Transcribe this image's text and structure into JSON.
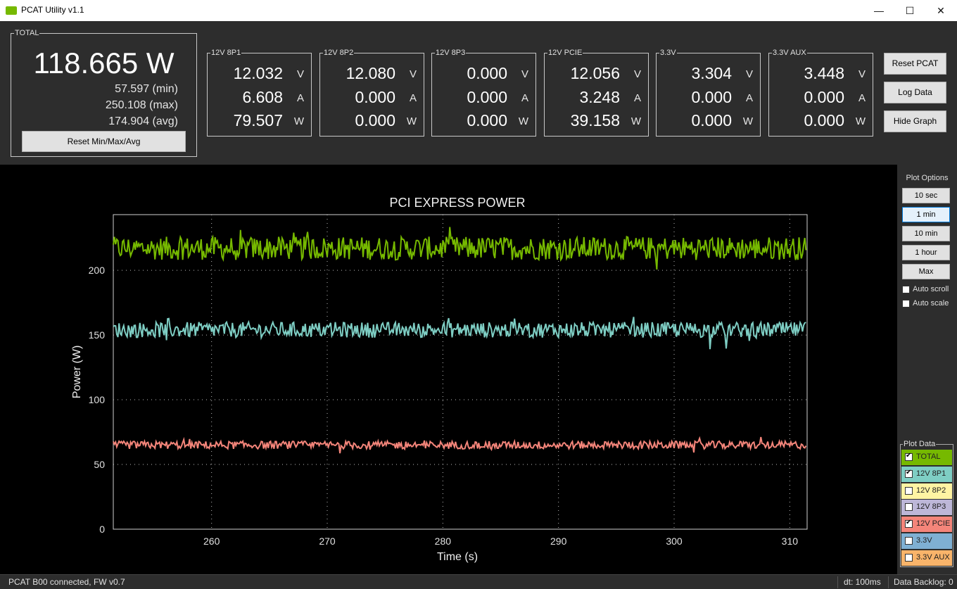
{
  "window": {
    "title": "PCAT Utility v1.1",
    "minimize": "—",
    "maximize": "☐",
    "close": "✕"
  },
  "total": {
    "label": "TOTAL",
    "value": "118.665 W",
    "min": "57.597 (min)",
    "max": "250.108 (max)",
    "avg": "174.904 (avg)",
    "reset_label": "Reset Min/Max/Avg"
  },
  "channels": [
    {
      "label": "12V 8P1",
      "volts": "12.032",
      "amps": "6.608",
      "watts": "79.507"
    },
    {
      "label": "12V 8P2",
      "volts": "12.080",
      "amps": "0.000",
      "watts": "0.000"
    },
    {
      "label": "12V 8P3",
      "volts": "0.000",
      "amps": "0.000",
      "watts": "0.000"
    },
    {
      "label": "12V PCIE",
      "volts": "12.056",
      "amps": "3.248",
      "watts": "39.158"
    },
    {
      "label": "3.3V",
      "volts": "3.304",
      "amps": "0.000",
      "watts": "0.000"
    },
    {
      "label": "3.3V AUX",
      "volts": "3.448",
      "amps": "0.000",
      "watts": "0.000"
    }
  ],
  "units": {
    "v": "V",
    "a": "A",
    "w": "W"
  },
  "buttons": {
    "reset_pcat": "Reset PCAT",
    "log_data": "Log Data",
    "hide_graph": "Hide Graph"
  },
  "plot_options": {
    "header": "Plot Options",
    "ranges": [
      "10 sec",
      "1 min",
      "10 min",
      "1 hour",
      "Max"
    ],
    "selected": "1 min",
    "auto_scroll": "Auto scroll",
    "auto_scale": "Auto scale"
  },
  "plot_data": {
    "header": "Plot Data",
    "items": [
      {
        "label": "TOTAL",
        "checked": true,
        "color": "#76b900"
      },
      {
        "label": "12V 8P1",
        "checked": true,
        "color": "#7ecec4"
      },
      {
        "label": "12V 8P2",
        "checked": false,
        "color": "#fff4a3"
      },
      {
        "label": "12V 8P3",
        "checked": false,
        "color": "#bdb7d8"
      },
      {
        "label": "12V PCIE",
        "checked": true,
        "color": "#f4857a"
      },
      {
        "label": "3.3V",
        "checked": false,
        "color": "#7fb0d3"
      },
      {
        "label": "3.3V AUX",
        "checked": false,
        "color": "#f9b46a"
      }
    ]
  },
  "status": {
    "connection": "PCAT B00 connected, FW v0.7",
    "dt": "dt: 100ms",
    "backlog": "Data Backlog: 0"
  },
  "chart_data": {
    "type": "line",
    "title": "PCI EXPRESS POWER",
    "xlabel": "Time (s)",
    "ylabel": "Power (W)",
    "xlim": [
      251.5,
      311.5
    ],
    "ylim": [
      0,
      243
    ],
    "xticks": [
      260,
      270,
      280,
      290,
      300,
      310
    ],
    "yticks": [
      0,
      50,
      100,
      150,
      200
    ],
    "grid": "dotted",
    "series": [
      {
        "name": "TOTAL",
        "color": "#76b900",
        "mean": 217,
        "amplitude": 9
      },
      {
        "name": "12V 8P1",
        "color": "#7ecec4",
        "mean": 154,
        "amplitude": 6
      },
      {
        "name": "12V PCIE",
        "color": "#f4857a",
        "mean": 65,
        "amplitude": 3
      }
    ]
  }
}
